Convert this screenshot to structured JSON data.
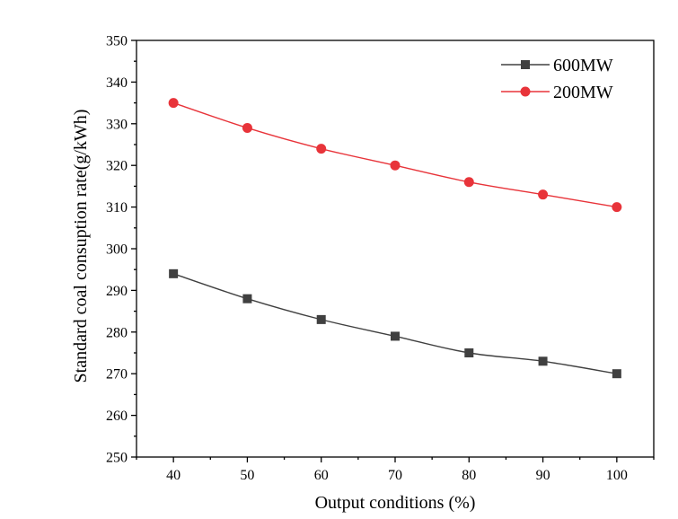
{
  "chart_data": {
    "type": "line",
    "title": "",
    "xlabel": "Output conditions (%)",
    "ylabel": "Standard coal consuption rate(g/kWh)",
    "x": [
      40,
      50,
      60,
      70,
      80,
      90,
      100
    ],
    "x_ticks": [
      "40",
      "50",
      "60",
      "70",
      "80",
      "90",
      "100"
    ],
    "xlim": [
      35,
      105
    ],
    "y_ticks": [
      "250",
      "260",
      "270",
      "280",
      "290",
      "300",
      "310",
      "320",
      "330",
      "340",
      "350"
    ],
    "ylim": [
      250,
      350
    ],
    "grid": false,
    "legend_position": "top-right",
    "series": [
      {
        "name": "600MW",
        "marker": "square",
        "color": "#404040",
        "values": [
          294,
          288,
          283,
          279,
          275,
          273,
          270
        ]
      },
      {
        "name": "200MW",
        "marker": "circle",
        "color": "#e8343a",
        "values": [
          335,
          329,
          324,
          320,
          316,
          313,
          310
        ]
      }
    ]
  }
}
